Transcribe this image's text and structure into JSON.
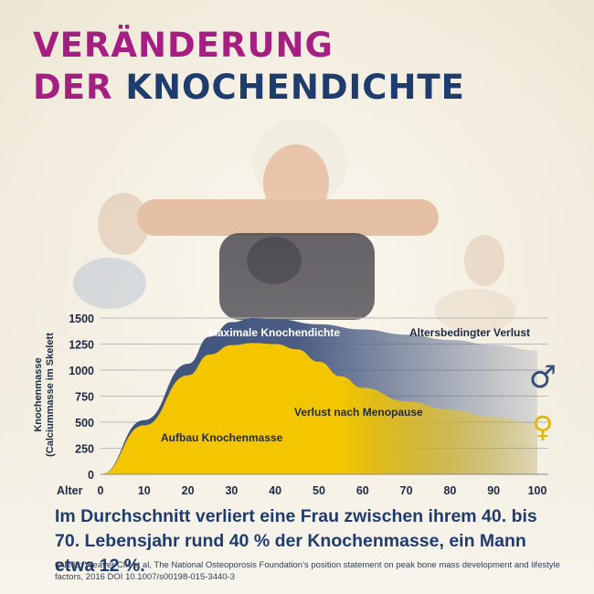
{
  "title": {
    "line1": "VERÄNDERUNG",
    "line2_part1": "DER",
    "line2_part2": "KNOCHENDICHTE"
  },
  "summary": "Im Durchschnitt verliert eine Frau zwischen ihrem 40. bis 70. Lebensjahr rund 40 % der Knochenmasse, ein Mann etwa 12 %.",
  "source": "Quelle: Weaver CM et al, The National Osteoporosis Foundation’s position statement on peak bone mass development and lifestyle factors, 2016 DOI 10.1007/s00198-015-3440-3",
  "colors": {
    "men_area": "#3a4f78",
    "women_area": "#f3c600",
    "title_accent": "#a51f83",
    "title_dark": "#1f3c6e"
  },
  "chart_data": {
    "type": "area",
    "xlabel": "Alter",
    "ylabel": "Knochenmasse (Calciummasse im Skelett (g)",
    "x_ticks": [
      0,
      10,
      20,
      30,
      40,
      50,
      60,
      70,
      80,
      90,
      100
    ],
    "y_ticks": [
      0,
      250,
      500,
      750,
      1000,
      1250,
      1500
    ],
    "xlim": [
      0,
      100
    ],
    "ylim": [
      0,
      1500
    ],
    "grid": true,
    "series": [
      {
        "symbol": "♂",
        "color": "#3a4f78",
        "x": [
          0,
          10,
          20,
          25,
          30,
          35,
          40,
          50,
          60,
          70,
          80,
          90,
          100
        ],
        "y": [
          0,
          520,
          1060,
          1320,
          1460,
          1500,
          1490,
          1440,
          1390,
          1340,
          1290,
          1240,
          1190
        ]
      },
      {
        "symbol": "♀",
        "color": "#f3c600",
        "x": [
          0,
          10,
          20,
          25,
          30,
          35,
          40,
          45,
          50,
          55,
          60,
          70,
          80,
          90,
          100
        ],
        "y": [
          0,
          470,
          950,
          1150,
          1240,
          1260,
          1250,
          1200,
          1080,
          940,
          830,
          700,
          620,
          550,
          490
        ]
      }
    ],
    "annotations": {
      "peak": "Maximale Knochendichte",
      "age_loss": "Altersbedingter Verlust",
      "menopause_loss": "Verlust nach Menopause",
      "build_up": "Aufbau Knochenmasse"
    }
  }
}
